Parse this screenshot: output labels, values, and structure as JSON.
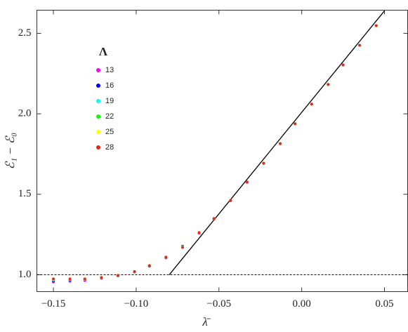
{
  "chart_data": {
    "type": "scatter",
    "xlabel": "λ̄",
    "ylabel": "ℰ₁ − ℰ₀",
    "legend_title": "Λ",
    "x": [
      -0.15,
      -0.14,
      -0.131,
      -0.121,
      -0.111,
      -0.101,
      -0.092,
      -0.082,
      -0.072,
      -0.062,
      -0.053,
      -0.043,
      -0.033,
      -0.023,
      -0.013,
      -0.004,
      0.006,
      0.016,
      0.025,
      0.035,
      0.045
    ],
    "series": [
      {
        "name": "13",
        "color": "#ff00ff",
        "values": [
          0.955,
          0.96,
          0.965,
          0.978,
          0.993,
          1.017,
          1.053,
          1.105,
          1.178,
          1.257,
          1.346,
          1.46,
          1.575,
          1.692,
          1.815,
          1.938,
          2.06,
          2.182,
          2.304,
          2.426,
          2.548
        ]
      },
      {
        "name": "16",
        "color": "#0000ff",
        "values": [
          0.962,
          0.966,
          0.969,
          0.98,
          0.994,
          1.018,
          1.055,
          1.107,
          1.176,
          1.259,
          1.347,
          1.461,
          1.575,
          1.692,
          1.815,
          1.938,
          2.06,
          2.182,
          2.304,
          2.426,
          2.548
        ]
      },
      {
        "name": "19",
        "color": "#00ffff",
        "values": [
          0.967,
          0.969,
          0.971,
          0.981,
          0.995,
          1.019,
          1.056,
          1.108,
          1.174,
          1.26,
          1.348,
          1.461,
          1.576,
          1.693,
          1.815,
          1.938,
          2.06,
          2.182,
          2.304,
          2.426,
          2.548
        ]
      },
      {
        "name": "22",
        "color": "#00ff00",
        "values": [
          0.97,
          0.971,
          0.972,
          0.982,
          0.995,
          1.019,
          1.056,
          1.108,
          1.172,
          1.261,
          1.348,
          1.462,
          1.576,
          1.693,
          1.815,
          1.938,
          2.06,
          2.182,
          2.304,
          2.426,
          2.548
        ]
      },
      {
        "name": "25",
        "color": "#ffff00",
        "values": [
          0.972,
          0.973,
          0.973,
          0.982,
          0.996,
          1.02,
          1.057,
          1.109,
          1.171,
          1.261,
          1.349,
          1.462,
          1.576,
          1.693,
          1.815,
          1.938,
          2.06,
          2.182,
          2.304,
          2.426,
          2.548
        ]
      },
      {
        "name": "28",
        "color": "#e8251a",
        "values": [
          0.974,
          0.974,
          0.974,
          0.983,
          0.996,
          1.02,
          1.057,
          1.109,
          1.17,
          1.262,
          1.349,
          1.462,
          1.576,
          1.693,
          1.815,
          1.938,
          2.06,
          2.182,
          2.304,
          2.426,
          2.548
        ]
      }
    ],
    "fit_line": {
      "x": [
        -0.08,
        0.05
      ],
      "y": [
        1.0,
        2.64
      ]
    },
    "reference_line": 1.0,
    "xlim": [
      -0.16,
      0.064
    ],
    "ylim": [
      0.895,
      2.644
    ],
    "xticks": [
      {
        "value": -0.15,
        "label": "−0.15"
      },
      {
        "value": -0.1,
        "label": "−0.10"
      },
      {
        "value": -0.05,
        "label": "−0.05"
      },
      {
        "value": 0,
        "label": "0.00"
      },
      {
        "value": 0.05,
        "label": "0.05"
      }
    ],
    "yticks": [
      {
        "value": 1.0,
        "label": "1.0"
      },
      {
        "value": 1.5,
        "label": "1.5"
      },
      {
        "value": 2.0,
        "label": "2.0"
      },
      {
        "value": 2.5,
        "label": "2.5"
      }
    ],
    "grid": false,
    "legend": "upper left"
  }
}
